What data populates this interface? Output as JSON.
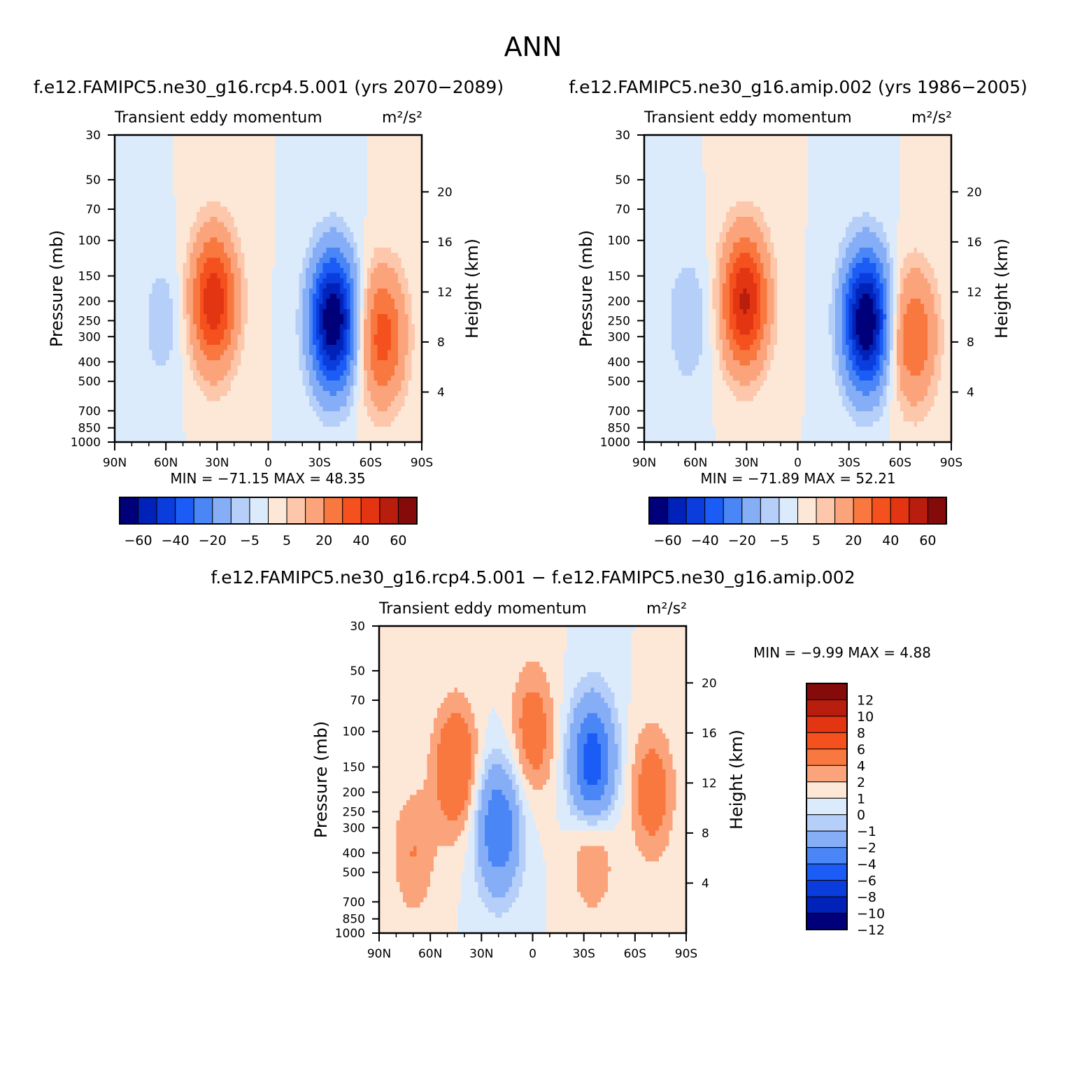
{
  "figure": {
    "title": "ANN",
    "diff_title": "f.e12.FAMIPC5.ne30_g16.rcp4.5.001 − f.e12.FAMIPC5.ne30_g16.amip.002"
  },
  "colors": {
    "panel_scale": [
      "#00007a",
      "#0022b8",
      "#0a3ddc",
      "#1a5cf5",
      "#4a86f5",
      "#86aef7",
      "#b5cff9",
      "#dcebfb",
      "#fde8d8",
      "#fcc7aa",
      "#fba37a",
      "#f9783f",
      "#f4511e",
      "#e33512",
      "#b81d0d",
      "#850a0a"
    ],
    "diff_scale": [
      "#00007a",
      "#0022b8",
      "#0a3ddc",
      "#1a5cf5",
      "#4a86f5",
      "#86aef7",
      "#b5cff9",
      "#dcebfb",
      "#fde8d8",
      "#fba37a",
      "#f9783f",
      "#f4511e",
      "#e33512",
      "#b81d0d",
      "#850a0a"
    ]
  },
  "chart_data": [
    {
      "type": "heatmap",
      "title": "f.e12.FAMIPC5.ne30_g16.rcp4.5.001 (yrs 2070−2089)",
      "subtitle": "Transient eddy momentum",
      "units": "m²/s²",
      "ylabel": "Pressure (mb)",
      "y2label": "Height (km)",
      "xticks": [
        "90N",
        "60N",
        "30N",
        "0",
        "30S",
        "60S",
        "90S"
      ],
      "xlim": [
        90,
        -90
      ],
      "yticks": [
        30,
        50,
        70,
        100,
        150,
        200,
        250,
        300,
        400,
        500,
        700,
        850,
        1000
      ],
      "ylim": [
        1000,
        30
      ],
      "y2ticks": [
        20,
        16,
        12,
        8,
        4
      ],
      "min_label": "MIN =  −71.15   MAX =   48.35",
      "min": -71.15,
      "max": 48.35,
      "colorbar_labels": [
        "−60",
        "−40",
        "−20",
        "−5",
        "5",
        "20",
        "40",
        "60"
      ],
      "features": [
        {
          "lat": 32,
          "p": 200,
          "value": 48.35
        },
        {
          "lat": -38,
          "p": 250,
          "value": -71.15
        },
        {
          "lat": -67,
          "p": 300,
          "value": 35
        },
        {
          "lat": 62,
          "p": 250,
          "value": -8
        }
      ]
    },
    {
      "type": "heatmap",
      "title": "f.e12.FAMIPC5.ne30_g16.amip.002 (yrs 1986−2005)",
      "subtitle": "Transient eddy momentum",
      "units": "m²/s²",
      "ylabel": "Pressure (mb)",
      "y2label": "Height (km)",
      "xticks": [
        "90N",
        "60N",
        "30N",
        "0",
        "30S",
        "60S",
        "90S"
      ],
      "xlim": [
        90,
        -90
      ],
      "yticks": [
        30,
        50,
        70,
        100,
        150,
        200,
        250,
        300,
        400,
        500,
        700,
        850,
        1000
      ],
      "ylim": [
        1000,
        30
      ],
      "y2ticks": [
        20,
        16,
        12,
        8,
        4
      ],
      "min_label": "MIN =  −71.89   MAX =   52.21",
      "min": -71.89,
      "max": 52.21,
      "colorbar_labels": [
        "−60",
        "−40",
        "−20",
        "−5",
        "5",
        "20",
        "40",
        "60"
      ],
      "features": [
        {
          "lat": 31,
          "p": 200,
          "value": 52.21
        },
        {
          "lat": -40,
          "p": 250,
          "value": -71.89
        },
        {
          "lat": -68,
          "p": 300,
          "value": 30
        },
        {
          "lat": 64,
          "p": 250,
          "value": -10
        }
      ]
    },
    {
      "type": "heatmap",
      "subtitle": "Transient eddy momentum",
      "units": "m²/s²",
      "ylabel": "Pressure (mb)",
      "y2label": "Height (km)",
      "xticks": [
        "90N",
        "60N",
        "30N",
        "0",
        "30S",
        "60S",
        "90S"
      ],
      "xlim": [
        90,
        -90
      ],
      "yticks": [
        30,
        50,
        70,
        100,
        150,
        200,
        250,
        300,
        400,
        500,
        700,
        850,
        1000
      ],
      "ylim": [
        1000,
        30
      ],
      "y2ticks": [
        20,
        16,
        12,
        8,
        4
      ],
      "min_label": "MIN =    −9.99   MAX =    4.88",
      "min": -9.99,
      "max": 4.88,
      "colorbar_labels": [
        "12",
        "10",
        "8",
        "6",
        "4",
        "2",
        "1",
        "0",
        "−1",
        "−2",
        "−4",
        "−6",
        "−8",
        "−10",
        "−12"
      ],
      "features": [
        {
          "lat": 45,
          "p": 150,
          "value": 4
        },
        {
          "lat": 20,
          "p": 300,
          "value": -6
        },
        {
          "lat": -35,
          "p": 150,
          "value": -8
        },
        {
          "lat": -35,
          "p": 350,
          "value": 3
        },
        {
          "lat": 70,
          "p": 400,
          "value": 2
        },
        {
          "lat": -70,
          "p": 200,
          "value": 3
        },
        {
          "lat": 0,
          "p": 100,
          "value": 3
        }
      ]
    }
  ]
}
